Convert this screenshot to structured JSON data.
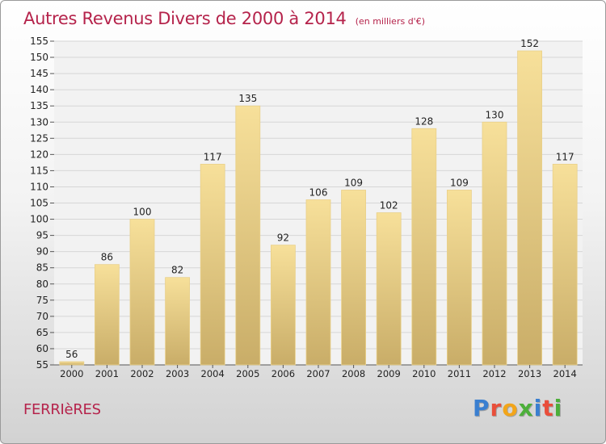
{
  "chart_data": {
    "type": "bar",
    "title": "Autres Revenus Divers de 2000 à 2014",
    "unit_note": "(en milliers d'€)",
    "categories": [
      "2000",
      "2001",
      "2002",
      "2003",
      "2004",
      "2005",
      "2006",
      "2007",
      "2008",
      "2009",
      "2010",
      "2011",
      "2012",
      "2013",
      "2014"
    ],
    "values": [
      56,
      86,
      100,
      82,
      117,
      135,
      92,
      106,
      109,
      102,
      128,
      109,
      130,
      152,
      117
    ],
    "ylim": [
      55,
      155
    ],
    "yticks": [
      55,
      60,
      65,
      70,
      75,
      80,
      85,
      90,
      95,
      100,
      105,
      110,
      115,
      120,
      125,
      130,
      135,
      140,
      145,
      150,
      155
    ],
    "grid": true,
    "bar_color_light": "#f7e09a",
    "bar_color_dark": "#c9ad68"
  },
  "footer": {
    "town": "FERRIèRES",
    "logo_letters": [
      {
        "ch": "P",
        "color": "#3a7fd0"
      },
      {
        "ch": "r",
        "color": "#e94e3a"
      },
      {
        "ch": "o",
        "color": "#f2a51a"
      },
      {
        "ch": "x",
        "color": "#4caf3a"
      },
      {
        "ch": "i",
        "color": "#3a7fd0"
      },
      {
        "ch": "t",
        "color": "#e94e3a"
      },
      {
        "ch": "i",
        "color": "#4caf3a"
      }
    ]
  }
}
